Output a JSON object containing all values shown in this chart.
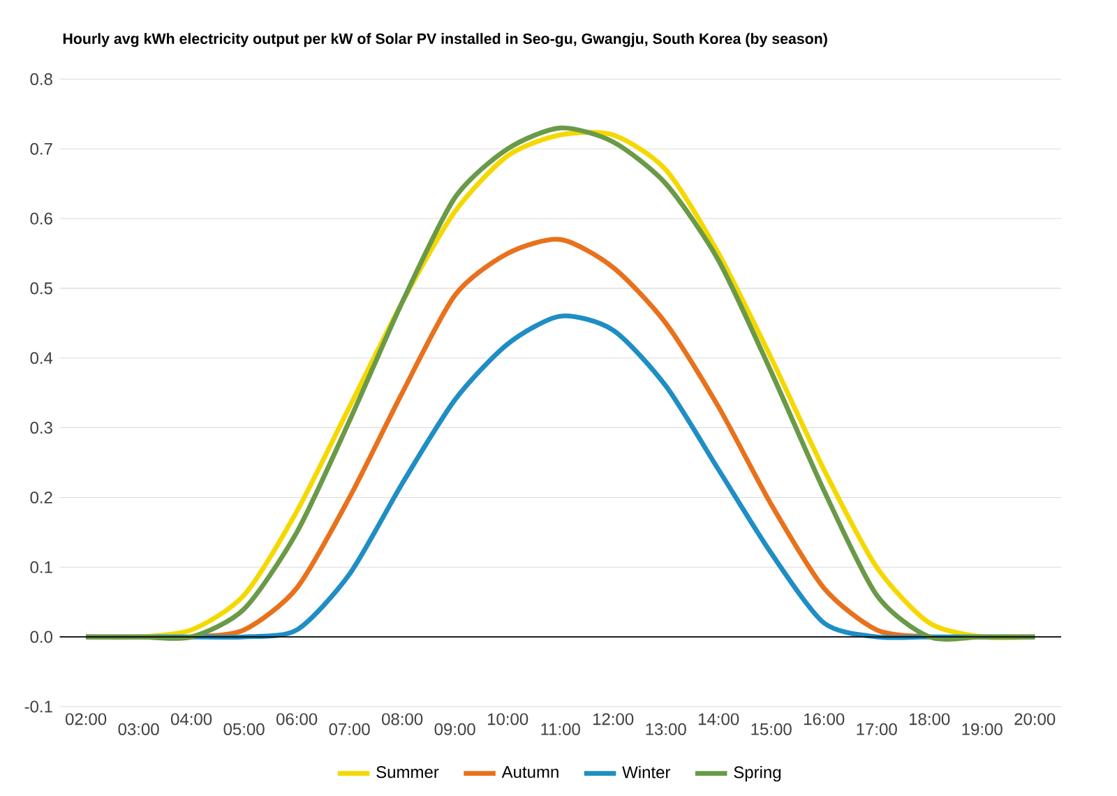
{
  "chart_data": {
    "type": "line",
    "title": "Hourly avg kWh electricity output per kW of Solar PV installed in Seo-gu, Gwangju, South Korea (by season)",
    "categories": [
      "02:00",
      "03:00",
      "04:00",
      "05:00",
      "06:00",
      "07:00",
      "08:00",
      "09:00",
      "10:00",
      "11:00",
      "12:00",
      "13:00",
      "14:00",
      "15:00",
      "16:00",
      "17:00",
      "18:00",
      "19:00",
      "20:00"
    ],
    "series": [
      {
        "name": "Summer",
        "color": "#f5d800",
        "values": [
          0,
          0,
          0.01,
          0.06,
          0.18,
          0.33,
          0.48,
          0.61,
          0.69,
          0.72,
          0.72,
          0.67,
          0.55,
          0.4,
          0.24,
          0.1,
          0.02,
          0,
          0
        ]
      },
      {
        "name": "Autumn",
        "color": "#e8711c",
        "values": [
          0,
          0,
          0,
          0.01,
          0.07,
          0.2,
          0.35,
          0.49,
          0.55,
          0.57,
          0.53,
          0.45,
          0.33,
          0.19,
          0.07,
          0.01,
          0,
          0,
          0
        ]
      },
      {
        "name": "Winter",
        "color": "#1f8ec4",
        "values": [
          0,
          0,
          0,
          0,
          0.01,
          0.09,
          0.22,
          0.34,
          0.42,
          0.46,
          0.44,
          0.36,
          0.24,
          0.12,
          0.02,
          0,
          0,
          0,
          0
        ]
      },
      {
        "name": "Spring",
        "color": "#6a9a48",
        "values": [
          0,
          0,
          0,
          0.04,
          0.15,
          0.31,
          0.48,
          0.63,
          0.7,
          0.73,
          0.71,
          0.65,
          0.54,
          0.38,
          0.21,
          0.06,
          0,
          0,
          0
        ]
      }
    ],
    "ylim": [
      -0.1,
      0.8
    ],
    "yticks": [
      {
        "value": -0.1,
        "label": "-0.1"
      },
      {
        "value": 0,
        "label": "0.0"
      },
      {
        "value": 0.1,
        "label": "0.1"
      },
      {
        "value": 0.2,
        "label": "0.2"
      },
      {
        "value": 0.3,
        "label": "0.3"
      },
      {
        "value": 0.4,
        "label": "0.4"
      },
      {
        "value": 0.5,
        "label": "0.5"
      },
      {
        "value": 0.6,
        "label": "0.6"
      },
      {
        "value": 0.7,
        "label": "0.7"
      },
      {
        "value": 0.8,
        "label": "0.8"
      }
    ],
    "grid": "y",
    "legend": "bottom",
    "marker": "none",
    "line_style": "solid"
  }
}
